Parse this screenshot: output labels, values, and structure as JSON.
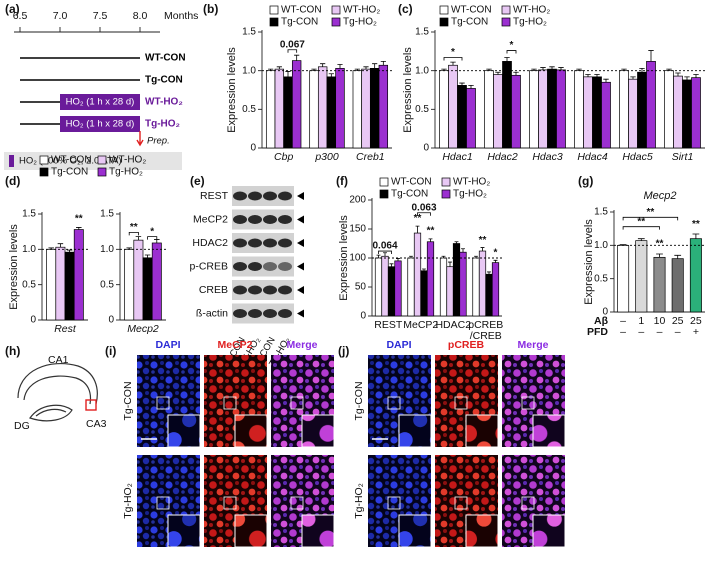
{
  "panel_a": {
    "label": "(a)",
    "ticks": [
      6.5,
      {
        "value": 7,
        "label": "7.0"
      },
      7.5,
      {
        "value": 8,
        "label": "8.0"
      }
    ],
    "unit": "Months",
    "groups": [
      "WT-CON",
      "Tg-CON",
      "WT-HO₂",
      "Tg-HO₂"
    ],
    "treatment": "HO₂ (1 h x 28 d)",
    "prep": "Prep.",
    "legend": "HO₂ (100% O₂, 2.0 ATA)"
  },
  "chart_data": [
    {
      "label": "(b)",
      "type": "bar",
      "ylabel": "Expression levels",
      "categories": [
        "Cbp",
        "p300",
        "Creb1"
      ],
      "italic_categories": true,
      "ylim": [
        0,
        1.5
      ],
      "yticks": [
        0,
        0.5,
        {
          "value": 1,
          "label": "1.0"
        },
        1.5
      ],
      "reference_line": 1,
      "series": [
        {
          "name": "WT-CON",
          "color": "#ffffff",
          "values": [
            1.0,
            1.0,
            1.0
          ],
          "errors": [
            0.02,
            0.02,
            0.02
          ]
        },
        {
          "name": "WT-HO₂",
          "color": "#e8c8f4",
          "values": [
            1.02,
            1.05,
            1.02
          ],
          "errors": [
            0.03,
            0.04,
            0.03
          ]
        },
        {
          "name": "Tg-CON",
          "color": "#000000",
          "values": [
            0.92,
            0.92,
            1.03
          ],
          "errors": [
            0.07,
            0.04,
            0.06
          ]
        },
        {
          "name": "Tg-HO₂",
          "color": "#9b2fd0",
          "values": [
            1.13,
            1.03,
            1.07
          ],
          "errors": [
            0.07,
            0.05,
            0.05
          ]
        }
      ],
      "annotations": [
        "0.067"
      ]
    },
    {
      "label": "(c)",
      "type": "bar",
      "ylabel": "Expression levels",
      "categories": [
        "Hdac1",
        "Hdac2",
        "Hdac3",
        "Hdac4",
        "Hdac5",
        "Sirt1"
      ],
      "italic_categories": true,
      "ylim": [
        0,
        1.5
      ],
      "yticks": [
        0,
        0.5,
        {
          "value": 1,
          "label": "1.0"
        },
        1.5
      ],
      "reference_line": 1,
      "series": [
        {
          "name": "WT-CON",
          "color": "#ffffff",
          "values": [
            1.0,
            1.0,
            1.0,
            1.0,
            1.0,
            1.0
          ],
          "errors": [
            0.02,
            0.02,
            0.02,
            0.02,
            0.02,
            0.02
          ]
        },
        {
          "name": "WT-HO₂",
          "color": "#e8c8f4",
          "values": [
            1.07,
            0.95,
            1.01,
            0.92,
            0.89,
            0.93
          ],
          "errors": [
            0.04,
            0.03,
            0.03,
            0.03,
            0.03,
            0.04
          ]
        },
        {
          "name": "Tg-CON",
          "color": "#000000",
          "values": [
            0.81,
            1.12,
            1.02,
            0.92,
            0.98,
            0.88
          ],
          "errors": [
            0.03,
            0.05,
            0.03,
            0.03,
            0.05,
            0.04
          ]
        },
        {
          "name": "Tg-HO₂",
          "color": "#9b2fd0",
          "values": [
            0.77,
            0.94,
            1.01,
            0.85,
            1.12,
            0.91
          ],
          "errors": [
            0.04,
            0.04,
            0.03,
            0.04,
            0.14,
            0.04
          ]
        }
      ],
      "annotations": [
        "*",
        "*"
      ]
    },
    {
      "label": "(d)",
      "type": "bar",
      "ylabel": "Expression levels",
      "categories": [
        "Rest"
      ],
      "italic_categories": true,
      "ylim": [
        0,
        1.5
      ],
      "yticks": [
        0,
        0.5,
        {
          "value": 1,
          "label": "1.0"
        },
        1.5
      ],
      "reference_line": 1,
      "series": [
        {
          "name": "WT-CON",
          "color": "#ffffff",
          "values": [
            1.0
          ],
          "errors": [
            0.02
          ]
        },
        {
          "name": "WT-HO₂",
          "color": "#e8c8f4",
          "values": [
            1.03
          ],
          "errors": [
            0.05
          ]
        },
        {
          "name": "Tg-CON",
          "color": "#000000",
          "values": [
            0.96
          ],
          "errors": [
            0.03
          ]
        },
        {
          "name": "Tg-HO₂",
          "color": "#9b2fd0",
          "values": [
            1.28
          ],
          "errors": [
            0.03
          ]
        }
      ],
      "annotations": [
        "**"
      ]
    },
    {
      "type": "bar",
      "categories": [
        "Mecp2"
      ],
      "italic_categories": true,
      "ylim": [
        0,
        1.5
      ],
      "yticks": [
        0,
        0.5,
        {
          "value": 1,
          "label": "1.0"
        },
        1.5
      ],
      "reference_line": 1,
      "series": [
        {
          "color": "#ffffff",
          "values": [
            1.0
          ],
          "errors": [
            0.02
          ]
        },
        {
          "color": "#e8c8f4",
          "values": [
            1.13
          ],
          "errors": [
            0.05
          ]
        },
        {
          "color": "#000000",
          "values": [
            0.88
          ],
          "errors": [
            0.04
          ]
        },
        {
          "color": "#9b2fd0",
          "values": [
            1.09
          ],
          "errors": [
            0.05
          ]
        }
      ],
      "annotations": [
        "**",
        "*"
      ]
    },
    {
      "label": "(f)",
      "type": "bar",
      "ylabel": "Expression levels",
      "categories": [
        "REST",
        "MeCP2",
        "HDAC2",
        "pCREB\n/CREB"
      ],
      "ylim": [
        0,
        200
      ],
      "yticks": [
        0,
        50,
        100,
        150,
        200
      ],
      "reference_line": 100,
      "series": [
        {
          "name": "WT-CON",
          "color": "#ffffff",
          "values": [
            100,
            100,
            100,
            100
          ],
          "errors": [
            5,
            3,
            3,
            3
          ]
        },
        {
          "name": "WT-HO₂",
          "color": "#e8c8f4",
          "values": [
            103,
            143,
            85,
            112
          ],
          "errors": [
            6,
            12,
            8,
            6
          ]
        },
        {
          "name": "Tg-CON",
          "color": "#000000",
          "values": [
            85,
            78,
            125,
            72
          ],
          "errors": [
            5,
            3,
            3,
            4
          ]
        },
        {
          "name": "Tg-HO₂",
          "color": "#9b2fd0",
          "values": [
            95,
            128,
            110,
            92
          ],
          "errors": [
            4,
            5,
            6,
            4
          ]
        }
      ],
      "annotations": [
        "0.064",
        "**",
        "0.063",
        "**",
        "**",
        "*"
      ]
    },
    {
      "label": "(g)",
      "type": "bar",
      "title": "Mecp2",
      "ylabel": "Expression levels",
      "categories": [
        "–",
        "1",
        "10",
        "25",
        "25"
      ],
      "pfd": [
        "–",
        "–",
        "–",
        "–",
        "+"
      ],
      "row_labels": [
        "Aβ",
        "PFD"
      ],
      "ylim": [
        0,
        1.5
      ],
      "yticks": [
        0,
        0.5,
        {
          "value": 1,
          "label": "1.0"
        },
        1.5
      ],
      "reference_line": 1,
      "values": [
        1.0,
        1.07,
        0.82,
        0.8,
        1.1
      ],
      "errors": [
        0.01,
        0.03,
        0.05,
        0.05,
        0.07
      ],
      "colors": [
        "#ffffff",
        "#d9d9d9",
        "#8c8c8c",
        "#6e6e6e",
        "#2bb07a"
      ],
      "annotations": [
        "**",
        "**",
        "**",
        "**"
      ]
    }
  ],
  "panel_e": {
    "label": "(e)",
    "proteins": [
      "REST",
      "MeCP2",
      "HDAC2",
      "p-CREB",
      "CREB",
      "ß-actin"
    ],
    "lanes": [
      "WT-CON",
      "WT-HO₂",
      "Tg-CON",
      "Tg-HO₂"
    ]
  },
  "panel_h": {
    "label": "(h)",
    "regions": [
      "CA1",
      "DG",
      "CA3"
    ]
  },
  "panel_i": {
    "label": "(i)",
    "channels": [
      "DAPI",
      "MeCP2",
      "Merge"
    ],
    "rows": [
      "Tg-CON",
      "Tg-HO₂"
    ]
  },
  "panel_j": {
    "label": "(j)",
    "channels": [
      "DAPI",
      "pCREB",
      "Merge"
    ],
    "rows": [
      "Tg-CON",
      "Tg-HO₂"
    ]
  }
}
